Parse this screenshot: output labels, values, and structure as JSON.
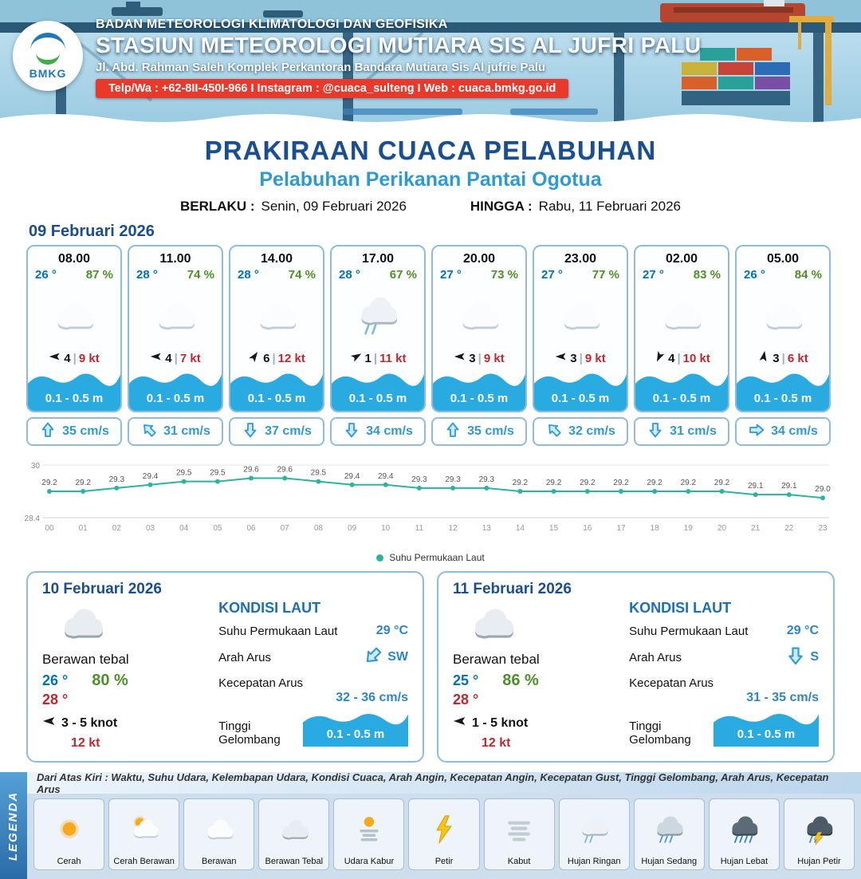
{
  "header": {
    "logo_label": "BMKG",
    "agency": "BADAN METEOROLOGI KLIMATOLOGI DAN GEOFISIKA",
    "station": "STASIUN METEOROLOGI MUTIARA SIS AL JUFRI PALU",
    "address": "Jl. Abd. Rahman Saleh Komplek Perkantoran Bandara Mutiara Sis Al jufrie Palu",
    "contact": "Telp/Wa : +62-8II-450I-966  I  Instagram : @cuaca_sulteng  I  Web : cuaca.bmkg.go.id"
  },
  "title": {
    "main": "PRAKIRAAN CUACA PELABUHAN",
    "subtitle": "Pelabuhan Perikanan Pantai Ogotua",
    "valid_from_label": "BERLAKU :",
    "valid_from": "Senin, 09 Februari 2026",
    "valid_to_label": "HINGGA :",
    "valid_to": "Rabu, 11 Februari 2026"
  },
  "forecast_date": "09 Februari 2026",
  "ui": {
    "separator": "|"
  },
  "hourly": [
    {
      "time": "08.00",
      "temp": "26 °",
      "humidity": "87 %",
      "icon": "berawan",
      "wind_dir_deg": 180,
      "wind": "4",
      "gust": "9 kt",
      "wave": "0.1 - 0.5 m",
      "current_dir_deg": 0,
      "current": "35 cm/s"
    },
    {
      "time": "11.00",
      "temp": "28 °",
      "humidity": "74 %",
      "icon": "berawan",
      "wind_dir_deg": 180,
      "wind": "4",
      "gust": "7 kt",
      "wave": "0.1 - 0.5 m",
      "current_dir_deg": -45,
      "current": "31 cm/s"
    },
    {
      "time": "14.00",
      "temp": "28 °",
      "humidity": "74 %",
      "icon": "berawan",
      "wind_dir_deg": -55,
      "wind": "6",
      "gust": "12 kt",
      "wave": "0.1 - 0.5 m",
      "current_dir_deg": 180,
      "current": "37 cm/s"
    },
    {
      "time": "17.00",
      "temp": "28 °",
      "humidity": "67 %",
      "icon": "hujan-ringan",
      "wind_dir_deg": -30,
      "wind": "1",
      "gust": "11 kt",
      "wave": "0.1 - 0.5 m",
      "current_dir_deg": 180,
      "current": "34 cm/s"
    },
    {
      "time": "20.00",
      "temp": "27 °",
      "humidity": "73 %",
      "icon": "berawan",
      "wind_dir_deg": 180,
      "wind": "3",
      "gust": "9 kt",
      "wave": "0.1 - 0.5 m",
      "current_dir_deg": 0,
      "current": "35 cm/s"
    },
    {
      "time": "23.00",
      "temp": "27 °",
      "humidity": "77 %",
      "icon": "berawan",
      "wind_dir_deg": 180,
      "wind": "3",
      "gust": "9 kt",
      "wave": "0.1 - 0.5 m",
      "current_dir_deg": -45,
      "current": "32 cm/s"
    },
    {
      "time": "02.00",
      "temp": "27 °",
      "humidity": "83 %",
      "icon": "berawan",
      "wind_dir_deg": 115,
      "wind": "4",
      "gust": "10 kt",
      "wave": "0.1 - 0.5 m",
      "current_dir_deg": 180,
      "current": "31 cm/s"
    },
    {
      "time": "05.00",
      "temp": "26 °",
      "humidity": "84 %",
      "icon": "berawan",
      "wind_dir_deg": -80,
      "wind": "3",
      "gust": "6 kt",
      "wave": "0.1 - 0.5 m",
      "current_dir_deg": 90,
      "current": "34 cm/s"
    }
  ],
  "chart_data": {
    "type": "line",
    "series_name": "Suhu Permukaan Laut",
    "unit": "°C",
    "x": [
      "00",
      "01",
      "02",
      "03",
      "04",
      "05",
      "06",
      "07",
      "08",
      "09",
      "10",
      "11",
      "12",
      "13",
      "14",
      "15",
      "16",
      "17",
      "18",
      "19",
      "20",
      "21",
      "22",
      "23"
    ],
    "values": [
      29.2,
      29.2,
      29.3,
      29.4,
      29.5,
      29.5,
      29.6,
      29.6,
      29.5,
      29.4,
      29.4,
      29.3,
      29.3,
      29.3,
      29.2,
      29.2,
      29.2,
      29.2,
      29.2,
      29.2,
      29.2,
      29.1,
      29.1,
      29.0
    ],
    "ylim": [
      28.4,
      30
    ],
    "grid": true,
    "legend_position": "bottom"
  },
  "daily": [
    {
      "date": "10 Februari 2026",
      "icon": "berawan-tebal",
      "condition": "Berawan tebal",
      "temp_min": "26 °",
      "humidity": "80 %",
      "temp_max": "28 °",
      "wind_dir_deg": 180,
      "wind": "3  - 5 knot",
      "gust": "12 kt",
      "sea": {
        "heading": "KONDISI LAUT",
        "sst_label": "Suhu Permukaan Laut",
        "sst": "29 °C",
        "current_dir_label": "Arah Arus",
        "current_dir": "SW",
        "current_dir_deg": 225,
        "current_speed_label": "Kecepatan Arus",
        "current_speed": "32  - 36 cm/s",
        "wave_label": "Tinggi Gelombang",
        "wave": "0.1 - 0.5 m"
      }
    },
    {
      "date": "11 Februari 2026",
      "icon": "berawan-tebal",
      "condition": "Berawan tebal",
      "temp_min": "25 °",
      "humidity": "86 %",
      "temp_max": "28 °",
      "wind_dir_deg": 180,
      "wind": "1  - 5 knot",
      "gust": "12 kt",
      "sea": {
        "heading": "KONDISI LAUT",
        "sst_label": "Suhu Permukaan Laut",
        "sst": "29 °C",
        "current_dir_label": "Arah Arus",
        "current_dir": "S",
        "current_dir_deg": 180,
        "current_speed_label": "Kecepatan Arus",
        "current_speed": "31  - 35 cm/s",
        "wave_label": "Tinggi Gelombang",
        "wave": "0.1 - 0.5 m"
      }
    }
  ],
  "legend": {
    "title": "LEGENDA",
    "description": "Dari Atas Kiri : Waktu, Suhu Udara, Kelembapan Udara, Kondisi Cuaca, Arah Angin, Kecepatan Angin, Kecepatan Gust, Tinggi Gelombang, Arah Arus, Kecepatan Arus",
    "items": [
      {
        "label": "Cerah",
        "icon": "cerah"
      },
      {
        "label": "Cerah Berawan",
        "icon": "cerah-berawan"
      },
      {
        "label": "Berawan",
        "icon": "berawan"
      },
      {
        "label": "Berawan Tebal",
        "icon": "berawan-tebal"
      },
      {
        "label": "Udara Kabur",
        "icon": "udara-kabur"
      },
      {
        "label": "Petir",
        "icon": "petir"
      },
      {
        "label": "Kabut",
        "icon": "kabut"
      },
      {
        "label": "Hujan Ringan",
        "icon": "hujan-ringan"
      },
      {
        "label": "Hujan Sedang",
        "icon": "hujan-sedang"
      },
      {
        "label": "Hujan Lebat",
        "icon": "hujan-lebat"
      },
      {
        "label": "Hujan Petir",
        "icon": "hujan-petir"
      }
    ]
  },
  "colors": {
    "title_navy": "#1b4e8f",
    "subtitle_blue": "#2e9ad2",
    "temp_blue": "#0071bc",
    "temp_red": "#c1272d",
    "humidity_green": "#4f8f27",
    "wave_blue": "#29abe2",
    "chart_teal": "#2bb5a0",
    "contact_red": "#e8392b"
  }
}
